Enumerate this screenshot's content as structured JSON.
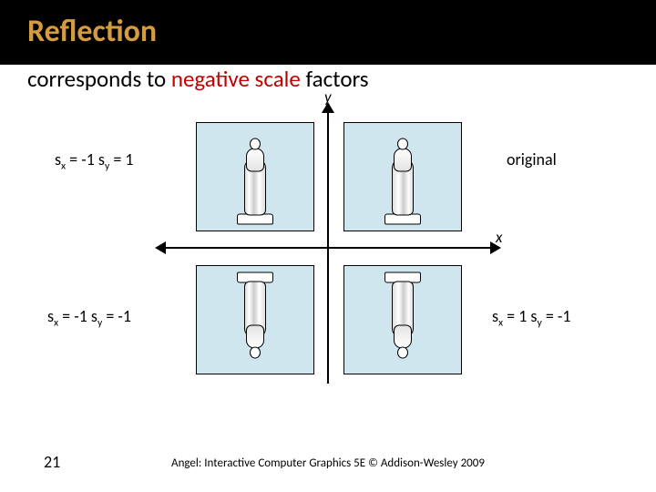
{
  "colors": {
    "titlebar_bg": "#000000",
    "title_text": "#d49c3f",
    "subtitle_text": "#000000",
    "highlight_text": "#c10000",
    "panel_bg": "#cfe6ee",
    "axis_color": "#000000",
    "body_text": "#000000"
  },
  "title": "Reflection",
  "subtitle_parts": {
    "pre": "corresponds to ",
    "highlight": "negative scale",
    "post": " factors"
  },
  "axes": {
    "x_label": "x",
    "y_label": "y"
  },
  "quadrants": {
    "top_right": {
      "label": "original",
      "sx": 1,
      "sy": 1
    },
    "top_left": {
      "sx": -1,
      "sy": 1
    },
    "bottom_left": {
      "sx": -1,
      "sy": -1
    },
    "bottom_right": {
      "sx": 1,
      "sy": -1
    }
  },
  "label_strings": {
    "tl": {
      "sx_lhs": "s",
      "sx_sub": "x",
      "sx_rhs": " = -1 ",
      "sy_lhs": "s",
      "sy_sub": "y",
      "sy_rhs": " = 1"
    },
    "bl": {
      "sx_lhs": "s",
      "sx_sub": "x",
      "sx_rhs": " = -1 ",
      "sy_lhs": "s",
      "sy_sub": "y",
      "sy_rhs": " = -1"
    },
    "br": {
      "sx_lhs": "s",
      "sx_sub": "x",
      "sx_rhs": " = 1 ",
      "sy_lhs": "s",
      "sy_sub": "y",
      "sy_rhs": " = -1"
    }
  },
  "page_number": "21",
  "credit": "Angel: Interactive Computer Graphics 5E © Addison-Wesley 2009"
}
